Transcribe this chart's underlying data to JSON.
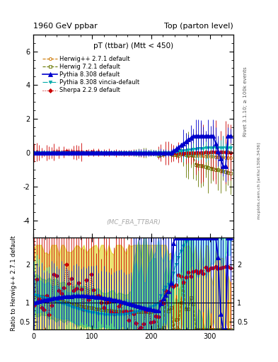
{
  "title_left": "1960 GeV ppbar",
  "title_right": "Top (parton level)",
  "plot_title": "pT (ttbar) (Mtt < 450)",
  "watermark": "(MC_FBA_TTBAR)",
  "rivet_label": "Rivet 3.1.10; ≥ 100k events",
  "arxiv_label": "mcplots.cern.ch [arXiv:1306.3436]",
  "ylabel_ratio": "Ratio to Herwig++ 2.7.1 default",
  "xlim": [
    0,
    340
  ],
  "ylim_main": [
    -5,
    7
  ],
  "ylim_ratio": [
    0.3,
    2.7
  ],
  "ratio_yticks": [
    0.5,
    1,
    2
  ],
  "main_yticks": [
    -4,
    -2,
    0,
    2,
    4,
    6
  ],
  "xticks": [
    0,
    100,
    200,
    300
  ],
  "series": [
    {
      "label": "Herwig++ 2.7.1 default",
      "color": "#cc7700",
      "marker": "o",
      "linestyle": "--",
      "markersize": 3,
      "linewidth": 0.8,
      "zorder": 3,
      "open_marker": true
    },
    {
      "label": "Herwig 7.2.1 default",
      "color": "#667700",
      "marker": "s",
      "linestyle": "--",
      "markersize": 3,
      "linewidth": 0.8,
      "zorder": 3,
      "open_marker": true
    },
    {
      "label": "Pythia 8.308 default",
      "color": "#0000cc",
      "marker": "^",
      "linestyle": "-",
      "markersize": 4,
      "linewidth": 1.2,
      "zorder": 5,
      "open_marker": false
    },
    {
      "label": "Pythia 8.308 vincia-default",
      "color": "#00aaaa",
      "marker": "v",
      "linestyle": "-.",
      "markersize": 3,
      "linewidth": 0.8,
      "zorder": 4,
      "open_marker": false
    },
    {
      "label": "Sherpa 2.2.9 default",
      "color": "#cc0000",
      "marker": "D",
      "linestyle": ":",
      "markersize": 3,
      "linewidth": 0.8,
      "zorder": 3,
      "open_marker": false
    }
  ],
  "background_color": "#ffffff",
  "fig_width": 3.93,
  "fig_height": 5.12,
  "dpi": 100
}
